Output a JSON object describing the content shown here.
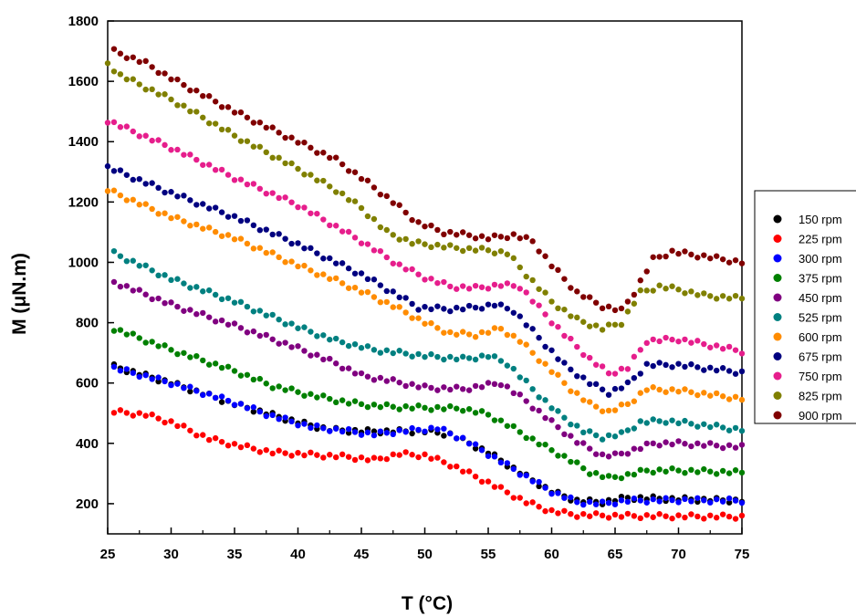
{
  "chart_data": {
    "type": "scatter",
    "xlabel": "T (°C)",
    "ylabel": "M (μN.m)",
    "xlim": [
      25,
      75
    ],
    "ylim": [
      100,
      1800
    ],
    "xticks": [
      25,
      30,
      35,
      40,
      45,
      50,
      55,
      60,
      65,
      70,
      75
    ],
    "yticks": [
      200,
      400,
      600,
      800,
      1000,
      1200,
      1400,
      1600,
      1800
    ],
    "grid": false,
    "legend_position": "right",
    "series": [
      {
        "name": "150 rpm",
        "color": "#000000",
        "points": [
          [
            25.5,
            655
          ],
          [
            30,
            600
          ],
          [
            35,
            530
          ],
          [
            40,
            470
          ],
          [
            42.5,
            445
          ],
          [
            45,
            440
          ],
          [
            47.5,
            440
          ],
          [
            50,
            440
          ],
          [
            52,
            430
          ],
          [
            55,
            370
          ],
          [
            58,
            290
          ],
          [
            60,
            240
          ],
          [
            62,
            210
          ],
          [
            64,
            205
          ],
          [
            66,
            220
          ],
          [
            70,
            215
          ],
          [
            75,
            210
          ]
        ]
      },
      {
        "name": "225 rpm",
        "color": "#ff0000",
        "points": [
          [
            25.5,
            505
          ],
          [
            28,
            495
          ],
          [
            30,
            470
          ],
          [
            33,
            415
          ],
          [
            35,
            395
          ],
          [
            38,
            370
          ],
          [
            42,
            360
          ],
          [
            44,
            355
          ],
          [
            46,
            345
          ],
          [
            48,
            365
          ],
          [
            50,
            360
          ],
          [
            52,
            330
          ],
          [
            55,
            270
          ],
          [
            58,
            205
          ],
          [
            60,
            175
          ],
          [
            62,
            163
          ],
          [
            65,
            160
          ],
          [
            70,
            158
          ],
          [
            75,
            157
          ]
        ]
      },
      {
        "name": "300 rpm",
        "color": "#0000ff",
        "points": [
          [
            25.5,
            650
          ],
          [
            30,
            600
          ],
          [
            35,
            535
          ],
          [
            38,
            490
          ],
          [
            41,
            455
          ],
          [
            44,
            440
          ],
          [
            46,
            430
          ],
          [
            48,
            440
          ],
          [
            51,
            450
          ],
          [
            53,
            415
          ],
          [
            55,
            365
          ],
          [
            58,
            290
          ],
          [
            60,
            240
          ],
          [
            62,
            205
          ],
          [
            64,
            200
          ],
          [
            66,
            210
          ],
          [
            70,
            212
          ],
          [
            75,
            210
          ]
        ]
      },
      {
        "name": "375 rpm",
        "color": "#008000",
        "points": [
          [
            25.5,
            780
          ],
          [
            30,
            710
          ],
          [
            35,
            640
          ],
          [
            38,
            590
          ],
          [
            41,
            560
          ],
          [
            44,
            535
          ],
          [
            46,
            525
          ],
          [
            48,
            520
          ],
          [
            50,
            518
          ],
          [
            53,
            515
          ],
          [
            55,
            495
          ],
          [
            57,
            450
          ],
          [
            59,
            400
          ],
          [
            61,
            355
          ],
          [
            63,
            305
          ],
          [
            64.5,
            285
          ],
          [
            66,
            295
          ],
          [
            67.5,
            310
          ],
          [
            70,
            310
          ],
          [
            75,
            303
          ]
        ]
      },
      {
        "name": "450 rpm",
        "color": "#800080",
        "points": [
          [
            25.5,
            935
          ],
          [
            30,
            860
          ],
          [
            35,
            790
          ],
          [
            40,
            715
          ],
          [
            43,
            665
          ],
          [
            45,
            625
          ],
          [
            47,
            610
          ],
          [
            50,
            585
          ],
          [
            53,
            580
          ],
          [
            56,
            600
          ],
          [
            58,
            540
          ],
          [
            60,
            470
          ],
          [
            62,
            405
          ],
          [
            64,
            360
          ],
          [
            65,
            360
          ],
          [
            67,
            385
          ],
          [
            68,
            400
          ],
          [
            70,
            400
          ],
          [
            75,
            388
          ]
        ]
      },
      {
        "name": "525 rpm",
        "color": "#008080",
        "points": [
          [
            25.5,
            1030
          ],
          [
            30,
            945
          ],
          [
            35,
            870
          ],
          [
            40,
            785
          ],
          [
            43,
            740
          ],
          [
            46,
            710
          ],
          [
            50,
            690
          ],
          [
            53,
            680
          ],
          [
            55,
            690
          ],
          [
            56.5,
            665
          ],
          [
            58.5,
            580
          ],
          [
            60.5,
            500
          ],
          [
            62.5,
            440
          ],
          [
            64,
            420
          ],
          [
            65.5,
            430
          ],
          [
            67,
            470
          ],
          [
            69,
            475
          ],
          [
            72,
            460
          ],
          [
            75,
            445
          ]
        ]
      },
      {
        "name": "600 rpm",
        "color": "#ff8c00",
        "points": [
          [
            25,
            1240
          ],
          [
            30,
            1150
          ],
          [
            35,
            1080
          ],
          [
            40,
            990
          ],
          [
            43,
            940
          ],
          [
            46,
            885
          ],
          [
            48,
            845
          ],
          [
            50,
            800
          ],
          [
            52,
            765
          ],
          [
            54,
            760
          ],
          [
            56,
            780
          ],
          [
            57.5,
            740
          ],
          [
            59.5,
            660
          ],
          [
            61.5,
            580
          ],
          [
            63,
            530
          ],
          [
            64.5,
            505
          ],
          [
            66,
            530
          ],
          [
            67.5,
            580
          ],
          [
            70,
            575
          ],
          [
            75,
            548
          ]
        ]
      },
      {
        "name": "675 rpm",
        "color": "#000080",
        "points": [
          [
            25,
            1315
          ],
          [
            30,
            1230
          ],
          [
            35,
            1150
          ],
          [
            40,
            1060
          ],
          [
            45,
            960
          ],
          [
            47.5,
            900
          ],
          [
            49.5,
            850
          ],
          [
            52,
            845
          ],
          [
            54,
            850
          ],
          [
            55.5,
            860
          ],
          [
            57,
            840
          ],
          [
            59,
            750
          ],
          [
            61,
            660
          ],
          [
            63,
            600
          ],
          [
            64.5,
            568
          ],
          [
            66,
            595
          ],
          [
            67.5,
            660
          ],
          [
            70,
            660
          ],
          [
            75,
            635
          ]
        ]
      },
      {
        "name": "750 rpm",
        "color": "#e61e8c",
        "points": [
          [
            25,
            1470
          ],
          [
            30,
            1380
          ],
          [
            35,
            1280
          ],
          [
            40,
            1190
          ],
          [
            45,
            1070
          ],
          [
            48,
            990
          ],
          [
            50,
            950
          ],
          [
            52,
            920
          ],
          [
            54,
            915
          ],
          [
            56,
            925
          ],
          [
            57.5,
            920
          ],
          [
            59,
            850
          ],
          [
            61,
            760
          ],
          [
            63,
            680
          ],
          [
            64.5,
            632
          ],
          [
            66,
            650
          ],
          [
            67.5,
            740
          ],
          [
            70,
            745
          ],
          [
            75,
            705
          ]
        ]
      },
      {
        "name": "825 rpm",
        "color": "#808000",
        "points": [
          [
            25,
            1660
          ],
          [
            26,
            1620
          ],
          [
            30,
            1540
          ],
          [
            35,
            1420
          ],
          [
            40,
            1310
          ],
          [
            43,
            1240
          ],
          [
            45,
            1180
          ],
          [
            47,
            1100
          ],
          [
            49,
            1065
          ],
          [
            51,
            1055
          ],
          [
            53,
            1045
          ],
          [
            55,
            1040
          ],
          [
            56.5,
            1030
          ],
          [
            58,
            960
          ],
          [
            60,
            870
          ],
          [
            62,
            810
          ],
          [
            64,
            780
          ],
          [
            65.5,
            800
          ],
          [
            67,
            900
          ],
          [
            68.5,
            920
          ],
          [
            70,
            910
          ],
          [
            72,
            890
          ],
          [
            75,
            880
          ]
        ]
      },
      {
        "name": "900 rpm",
        "color": "#800000",
        "points": [
          [
            25.5,
            1700
          ],
          [
            28,
            1660
          ],
          [
            30,
            1610
          ],
          [
            35,
            1500
          ],
          [
            40,
            1400
          ],
          [
            43,
            1340
          ],
          [
            45,
            1280
          ],
          [
            47.5,
            1200
          ],
          [
            49.5,
            1130
          ],
          [
            51.5,
            1100
          ],
          [
            53.5,
            1090
          ],
          [
            55,
            1080
          ],
          [
            57,
            1090
          ],
          [
            58.5,
            1070
          ],
          [
            60,
            990
          ],
          [
            62,
            900
          ],
          [
            64,
            855
          ],
          [
            65.5,
            840
          ],
          [
            66.5,
            900
          ],
          [
            68,
            1010
          ],
          [
            69.5,
            1035
          ],
          [
            72,
            1020
          ],
          [
            75,
            1000
          ]
        ]
      }
    ]
  }
}
